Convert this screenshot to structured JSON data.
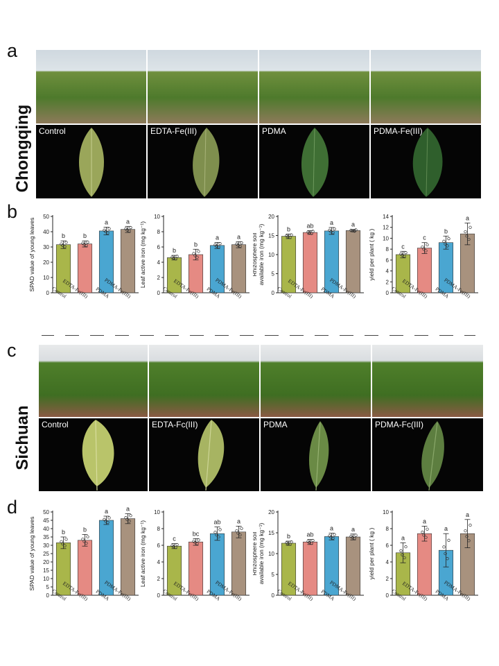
{
  "panels": {
    "a": "a",
    "b": "b",
    "c": "c",
    "d": "d"
  },
  "sites": {
    "chongqing": "Chongqing",
    "sichuan": "Sichuan"
  },
  "treatments_a": [
    "Control",
    "EDTA-Fe(III)",
    "PDMA",
    "PDMA-Fe(III)"
  ],
  "treatments_c": [
    "Control",
    "EDTA-Fc(III)",
    "PDMA",
    "PDMA-Fc(III)"
  ],
  "colors": {
    "control": "#a9b64a",
    "edta": "#e58a83",
    "pdma": "#4aa6d1",
    "pdma_fe": "#a8927e"
  },
  "chart_data": [
    {
      "id": "b1",
      "type": "bar",
      "panel": "b",
      "categories": [
        "Control",
        "EDTA-Fe(III)",
        "PDMA",
        "PDMA-Fe(III)"
      ],
      "values": [
        31.5,
        32,
        40.5,
        41.5
      ],
      "errors": [
        2.5,
        2,
        2.5,
        2
      ],
      "letters": [
        "b",
        "b",
        "a",
        "a"
      ],
      "ylabel": "SPAD value of young leaves",
      "ylim": [
        0,
        50
      ],
      "ticks": [
        0,
        10,
        20,
        30,
        40,
        50
      ]
    },
    {
      "id": "b2",
      "type": "bar",
      "panel": "b",
      "categories": [
        "Control",
        "EDTA-Fe(III)",
        "PDMA",
        "PDMA-Fe(III)"
      ],
      "values": [
        4.6,
        5,
        6.2,
        6.3
      ],
      "errors": [
        0.3,
        0.7,
        0.4,
        0.4
      ],
      "letters": [
        "b",
        "b",
        "a",
        "a"
      ],
      "ylabel": "Leaf active iron (mg kg⁻¹)",
      "ylim": [
        0,
        10
      ],
      "ticks": [
        0,
        2,
        4,
        6,
        8,
        10
      ]
    },
    {
      "id": "b3",
      "type": "bar",
      "panel": "b",
      "categories": [
        "Control",
        "EDTA-Fe(III)",
        "PDMA",
        "PDMA-Fe(III)"
      ],
      "values": [
        14.8,
        15.8,
        16.2,
        16.3
      ],
      "errors": [
        0.6,
        0.5,
        0.9,
        0.3
      ],
      "letters": [
        "b",
        "ab",
        "a",
        "a"
      ],
      "ylabel": "Rhizosphere soil available iron (mg kg⁻¹)",
      "ylim": [
        0,
        20
      ],
      "ticks": [
        0,
        5,
        10,
        15,
        20
      ]
    },
    {
      "id": "b4",
      "type": "bar",
      "panel": "b",
      "categories": [
        "Control",
        "EDTA-Fe(III)",
        "PDMA",
        "PDMA-Fe(III)"
      ],
      "values": [
        7,
        8.2,
        9.2,
        10.8
      ],
      "errors": [
        0.6,
        1,
        1.2,
        2
      ],
      "letters": [
        "c",
        "c",
        "b",
        "a"
      ],
      "ylabel": "yield per plant ( kg )",
      "ylim": [
        0,
        14
      ],
      "ticks": [
        0,
        2,
        4,
        6,
        8,
        10,
        12,
        14
      ]
    },
    {
      "id": "d1",
      "type": "bar",
      "panel": "d",
      "categories": [
        "Control",
        "EDTA-Fe(III)",
        "PDMA",
        "PDMA-Fe(III)"
      ],
      "values": [
        31.5,
        33,
        45,
        46
      ],
      "errors": [
        3.5,
        3.5,
        2.5,
        3
      ],
      "letters": [
        "b",
        "b",
        "a",
        "a"
      ],
      "ylabel": "SPAD value of young leaves",
      "ylim": [
        0,
        50
      ],
      "ticks": [
        0,
        5,
        10,
        15,
        20,
        25,
        30,
        35,
        40,
        45,
        50
      ]
    },
    {
      "id": "d2",
      "type": "bar",
      "panel": "d",
      "categories": [
        "Control",
        "EDTA-Fe(III)",
        "PDMA",
        "PDMA-Fe(III)"
      ],
      "values": [
        5.9,
        6.4,
        7.4,
        7.6
      ],
      "errors": [
        0.3,
        0.4,
        0.8,
        0.7
      ],
      "letters": [
        "c",
        "bc",
        "ab",
        "a"
      ],
      "ylabel": "Leaf active iron (mg kg⁻¹)",
      "ylim": [
        0,
        10
      ],
      "ticks": [
        0,
        2,
        4,
        6,
        8,
        10
      ]
    },
    {
      "id": "d3",
      "type": "bar",
      "panel": "d",
      "categories": [
        "Control",
        "EDTA-Fe(III)",
        "PDMA",
        "PDMA-Fe(III)"
      ],
      "values": [
        12.5,
        12.8,
        14.1,
        14
      ],
      "errors": [
        0.5,
        0.6,
        0.8,
        0.7
      ],
      "letters": [
        "b",
        "ab",
        "a",
        "a"
      ],
      "ylabel": "Rhizosphere soil available iron (mg kg⁻¹)",
      "ylim": [
        0,
        20
      ],
      "ticks": [
        0,
        5,
        10,
        15,
        20
      ]
    },
    {
      "id": "d4",
      "type": "bar",
      "panel": "d",
      "categories": [
        "Control",
        "EDTA-Fe(III)",
        "PDMA",
        "PDMA-Fe(III)"
      ],
      "values": [
        5.1,
        7.4,
        5.4,
        7.4
      ],
      "errors": [
        1.2,
        0.9,
        2,
        1.7
      ],
      "letters": [
        "a",
        "a",
        "a",
        "a"
      ],
      "ylabel": "yield per plant ( kg )",
      "ylim": [
        0,
        10
      ],
      "ticks": [
        0,
        2,
        4,
        6,
        8,
        10
      ]
    }
  ]
}
